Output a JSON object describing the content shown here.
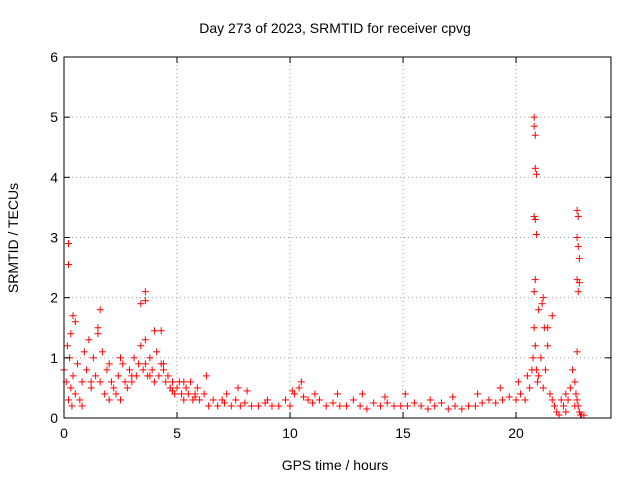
{
  "chart_data": {
    "type": "scatter",
    "title": "Day 273 of 2023, SRMTID for receiver cpvg",
    "xlabel": "GPS time / hours",
    "ylabel": "SRMTID / TECUs",
    "xlim": [
      0,
      24.2
    ],
    "ylim": [
      0,
      6
    ],
    "xticks": [
      0,
      5,
      10,
      15,
      20
    ],
    "yticks": [
      0,
      1,
      2,
      3,
      4,
      5,
      6
    ],
    "grid": true,
    "marker": "+",
    "color": "#ff0000",
    "series": [
      {
        "name": "SRMTID",
        "x": [
          0.0,
          0.1,
          0.15,
          0.2,
          0.25,
          0.3,
          0.35,
          0.4,
          0.5,
          0.6,
          0.7,
          0.8,
          0.9,
          1.0,
          1.1,
          1.2,
          1.3,
          1.4,
          1.5,
          1.6,
          1.7,
          1.8,
          1.9,
          2.0,
          2.1,
          2.2,
          2.3,
          2.4,
          2.5,
          2.6,
          2.7,
          2.8,
          2.9,
          3.0,
          3.1,
          3.2,
          3.3,
          3.4,
          3.5,
          3.6,
          3.7,
          3.8,
          3.9,
          4.0,
          4.1,
          4.2,
          4.3,
          4.4,
          4.5,
          4.6,
          4.7,
          4.8,
          4.9,
          5.0,
          5.1,
          5.2,
          5.3,
          5.4,
          5.5,
          5.6,
          5.7,
          5.8,
          5.9,
          6.0,
          6.2,
          6.4,
          6.6,
          6.8,
          7.0,
          7.2,
          7.4,
          7.6,
          7.8,
          8.0,
          8.3,
          8.6,
          8.9,
          9.2,
          9.5,
          9.8,
          10.0,
          10.2,
          10.4,
          10.6,
          10.8,
          11.0,
          11.3,
          11.6,
          11.9,
          12.2,
          12.5,
          12.8,
          13.1,
          13.4,
          13.7,
          14.0,
          14.3,
          14.6,
          14.9,
          15.2,
          15.5,
          15.8,
          16.1,
          16.4,
          16.7,
          17.0,
          17.3,
          17.6,
          17.9,
          18.2,
          18.5,
          18.8,
          19.1,
          19.4,
          19.7,
          20.0,
          20.2,
          20.4,
          20.6,
          20.7,
          20.75,
          20.8,
          20.85,
          20.9,
          20.95,
          21.0,
          21.1,
          21.2,
          21.3,
          21.4,
          21.5,
          21.6,
          21.7,
          21.8,
          21.9,
          22.0,
          22.1,
          22.2,
          22.3,
          22.4,
          22.5,
          22.6,
          22.65,
          22.7,
          22.75,
          22.8,
          22.85,
          22.9,
          23.0,
          0.3,
          0.5,
          0.8,
          1.2,
          1.6,
          2.0,
          2.5,
          3.0,
          3.4,
          3.6,
          3.8,
          4.0,
          4.4,
          4.8,
          5.3,
          5.8,
          6.3,
          7.1,
          7.7,
          8.1,
          9.0,
          10.1,
          10.5,
          11.1,
          12.1,
          13.2,
          14.2,
          15.1,
          16.2,
          17.2,
          18.3,
          19.3,
          20.1,
          20.5,
          20.8,
          21.15,
          21.25,
          21.6,
          22.2,
          22.6,
          22.7,
          0.2,
          0.2,
          0.4,
          1.5,
          3.6,
          3.6,
          4.3,
          20.8,
          20.8,
          20.85,
          20.85,
          20.9,
          20.8,
          20.85,
          20.9,
          21.2,
          21.4,
          22.7,
          22.75,
          22.7,
          22.75,
          22.8,
          22.7,
          22.8,
          22.75,
          20.85,
          21.0
        ],
        "y": [
          0.8,
          0.6,
          1.2,
          0.3,
          1.0,
          0.5,
          0.2,
          0.7,
          0.4,
          0.9,
          0.3,
          0.6,
          1.1,
          0.8,
          1.3,
          0.5,
          1.0,
          0.7,
          1.5,
          0.6,
          1.1,
          0.4,
          0.8,
          0.3,
          0.6,
          0.5,
          0.4,
          0.7,
          0.3,
          0.9,
          0.6,
          0.5,
          0.8,
          0.6,
          1.0,
          0.7,
          0.9,
          1.2,
          0.8,
          1.3,
          0.7,
          1.0,
          0.8,
          0.6,
          1.1,
          0.7,
          0.9,
          0.8,
          0.6,
          0.7,
          0.5,
          0.6,
          0.4,
          0.5,
          0.6,
          0.4,
          0.3,
          0.5,
          0.4,
          0.6,
          0.3,
          0.4,
          0.5,
          0.3,
          0.4,
          0.2,
          0.3,
          0.2,
          0.3,
          0.4,
          0.2,
          0.3,
          0.2,
          0.25,
          0.2,
          0.2,
          0.25,
          0.2,
          0.2,
          0.3,
          0.2,
          0.4,
          0.5,
          0.35,
          0.3,
          0.25,
          0.3,
          0.2,
          0.25,
          0.2,
          0.2,
          0.3,
          0.2,
          0.15,
          0.25,
          0.2,
          0.25,
          0.2,
          0.2,
          0.2,
          0.25,
          0.2,
          0.15,
          0.2,
          0.25,
          0.15,
          0.2,
          0.15,
          0.2,
          0.2,
          0.25,
          0.3,
          0.25,
          0.3,
          0.35,
          0.3,
          0.4,
          0.3,
          0.5,
          0.8,
          1.0,
          1.5,
          1.2,
          0.8,
          0.6,
          0.7,
          1.0,
          0.5,
          0.8,
          1.2,
          0.4,
          0.3,
          0.2,
          0.1,
          0.05,
          0.3,
          0.2,
          0.1,
          0.3,
          0.5,
          0.8,
          0.6,
          0.4,
          0.3,
          0.2,
          0.1,
          0.05,
          0.05,
          0.05,
          1.4,
          1.6,
          0.2,
          0.6,
          1.8,
          0.9,
          1.0,
          0.7,
          1.9,
          0.9,
          0.7,
          1.45,
          0.9,
          0.45,
          0.6,
          0.35,
          0.7,
          0.25,
          0.5,
          0.45,
          0.3,
          0.45,
          0.6,
          0.4,
          0.4,
          0.4,
          0.35,
          0.4,
          0.3,
          0.35,
          0.4,
          0.5,
          0.6,
          0.7,
          2.1,
          1.9,
          1.5,
          1.7,
          0.4,
          0.2,
          1.1,
          2.9,
          2.55,
          1.7,
          1.4,
          2.1,
          1.95,
          1.45,
          5.0,
          4.85,
          4.7,
          4.15,
          4.05,
          3.35,
          3.3,
          3.05,
          2.0,
          1.5,
          3.45,
          3.35,
          3.0,
          2.85,
          2.65,
          2.3,
          2.25,
          2.1,
          2.3,
          1.8
        ]
      }
    ]
  }
}
